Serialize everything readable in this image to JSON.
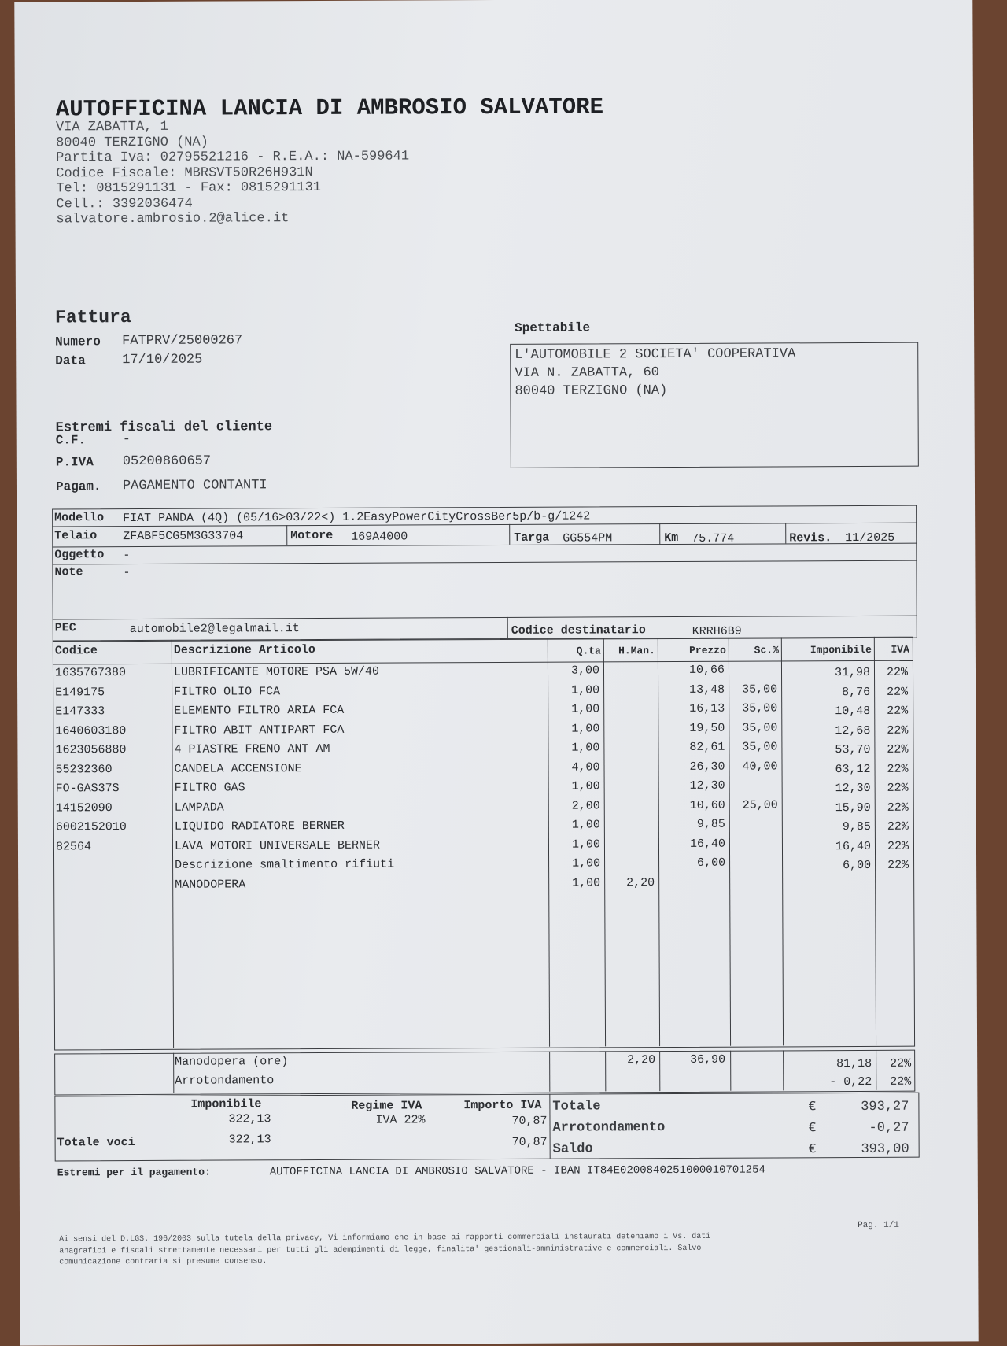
{
  "company": {
    "name": "AUTOFFICINA LANCIA DI AMBROSIO SALVATORE",
    "lines": [
      "VIA ZABATTA, 1",
      "80040 TERZIGNO (NA)",
      "Partita Iva: 02795521216 - R.E.A.: NA-599641",
      "Codice Fiscale: MBRSVT50R26H931N",
      "Tel: 0815291131 - Fax: 0815291131",
      "Cell.: 3392036474",
      "salvatore.ambrosio.2@alice.it"
    ]
  },
  "invoice": {
    "title": "Fattura",
    "numero_label": "Numero",
    "numero": "FATPRV/25000267",
    "data_label": "Data",
    "data": "17/10/2025"
  },
  "recipient": {
    "label": "Spettabile",
    "lines": [
      "L'AUTOMOBILE 2 SOCIETA' COOPERATIVA",
      "VIA N. ZABATTA, 60",
      "80040 TERZIGNO (NA)"
    ]
  },
  "client": {
    "heading": "Estremi fiscali del cliente",
    "cf_label": "C.F.",
    "cf": "-",
    "piva_label": "P.IVA",
    "piva": "05200860657",
    "pagam_label": "Pagam.",
    "pagam": "PAGAMENTO CONTANTI"
  },
  "vehicle": {
    "modello_label": "Modello",
    "modello": "FIAT PANDA (4Q) (05/16>03/22<) 1.2EasyPowerCityCrossBer5p/b-g/1242",
    "telaio_label": "Telaio",
    "telaio": "ZFABF5CG5M3G33704",
    "motore_label": "Motore",
    "motore": "169A4000",
    "targa_label": "Targa",
    "targa": "GG554PM",
    "km_label": "Km",
    "km": "75.774",
    "revis_label": "Revis.",
    "revis": "11/2025",
    "oggetto_label": "Oggetto",
    "oggetto": "-",
    "note_label": "Note",
    "note": "-",
    "pec_label": "PEC",
    "pec": "automobile2@legalmail.it",
    "coddest_label": "Codice destinatario",
    "coddest": "KRRH6B9"
  },
  "table": {
    "headers": [
      "Codice",
      "Descrizione Articolo",
      "Q.ta",
      "H.Man.",
      "Prezzo",
      "Sc.%",
      "Imponibile",
      "IVA"
    ],
    "rows": [
      [
        "1635767380",
        "LUBRIFICANTE MOTORE PSA 5W/40",
        "3,00",
        "",
        "10,66",
        "",
        "31,98",
        "22%"
      ],
      [
        "E149175",
        "FILTRO OLIO FCA",
        "1,00",
        "",
        "13,48",
        "35,00",
        "8,76",
        "22%"
      ],
      [
        "E147333",
        "ELEMENTO FILTRO ARIA FCA",
        "1,00",
        "",
        "16,13",
        "35,00",
        "10,48",
        "22%"
      ],
      [
        "1640603180",
        "FILTRO ABIT ANTIPART FCA",
        "1,00",
        "",
        "19,50",
        "35,00",
        "12,68",
        "22%"
      ],
      [
        "1623056880",
        "4 PIASTRE FRENO ANT AM",
        "1,00",
        "",
        "82,61",
        "35,00",
        "53,70",
        "22%"
      ],
      [
        "55232360",
        "CANDELA ACCENSIONE",
        "4,00",
        "",
        "26,30",
        "40,00",
        "63,12",
        "22%"
      ],
      [
        "FO-GAS37S",
        "FILTRO GAS",
        "1,00",
        "",
        "12,30",
        "",
        "12,30",
        "22%"
      ],
      [
        "14152090",
        "LAMPADA",
        "2,00",
        "",
        "10,60",
        "25,00",
        "15,90",
        "22%"
      ],
      [
        "6002152010",
        "LIQUIDO RADIATORE BERNER",
        "1,00",
        "",
        "9,85",
        "",
        "9,85",
        "22%"
      ],
      [
        "82564",
        "LAVA MOTORI UNIVERSALE BERNER",
        "1,00",
        "",
        "16,40",
        "",
        "16,40",
        "22%"
      ],
      [
        "",
        "Descrizione smaltimento rifiuti",
        "1,00",
        "",
        "6,00",
        "",
        "6,00",
        "22%"
      ],
      [
        "",
        "MANODOPERA",
        "1,00",
        "2,20",
        "",
        "",
        "",
        ""
      ]
    ]
  },
  "summary": {
    "manodopera_label": "Manodopera (ore)",
    "manodopera_hours": "2,20",
    "manodopera_price": "36,90",
    "manodopera_imponibile": "81,18",
    "manodopera_iva": "22%",
    "arrot_label": "Arrotondamento",
    "arrot_value": "- 0,22",
    "arrot_iva": "22%"
  },
  "totals": {
    "imponibile_label": "Imponibile",
    "imponibile": "322,13",
    "regime_label": "Regime IVA",
    "regime": "IVA 22%",
    "importo_label": "Importo IVA",
    "importo": "70,87",
    "voci_label": "Totale voci",
    "voci_imponibile": "322,13",
    "voci_importo": "70,87",
    "totale_label": "Totale",
    "totale": "393,27",
    "arrot_label": "Arrotondamento",
    "arrot": "-0,27",
    "saldo_label": "Saldo",
    "saldo": "393,00",
    "currency": "€"
  },
  "payment": {
    "label": "Estremi per il pagamento:",
    "text": "AUTOFFICINA LANCIA DI AMBROSIO SALVATORE - IBAN IT84E0200840251000010701254"
  },
  "footer": {
    "page": "Pag. 1/1",
    "privacy": [
      "Ai sensi del D.LGS. 196/2003 sulla tutela della privacy, Vi informiamo che in base ai rapporti commerciali instaurati deteniamo i Vs. dati",
      "anagrafici e fiscali strettamente necessari per tutti gli adempimenti di legge, finalita' gestionali-amministrative e commerciali. Salvo",
      "comunicazione contraria si presume consenso."
    ]
  }
}
